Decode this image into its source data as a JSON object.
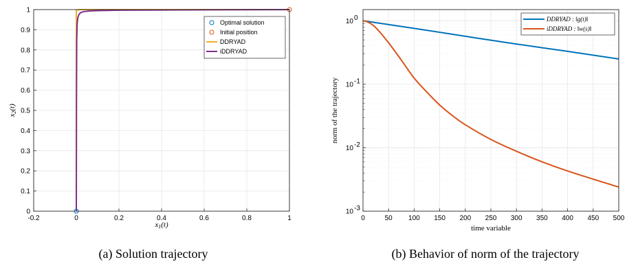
{
  "captions": {
    "a": "(a) Solution trajectory",
    "b": "(b) Behavior of norm of the trajectory"
  },
  "colors": {
    "blue": "#0072BD",
    "orange": "#D95319",
    "yellow": "#EDB120",
    "purple": "#7E2F8E"
  },
  "chart_data": [
    {
      "type": "line",
      "xlabel": "x_1(t)",
      "ylabel": "x_2(t)",
      "xlim": [
        -0.2,
        1
      ],
      "ylim": [
        0,
        1
      ],
      "xticks": [
        "-0.2",
        "0",
        "0.2",
        "0.4",
        "0.6",
        "0.8",
        "1"
      ],
      "yticks": [
        "0",
        "0.1",
        "0.2",
        "0.3",
        "0.4",
        "0.5",
        "0.6",
        "0.7",
        "0.8",
        "0.9",
        "1"
      ],
      "grid": true,
      "legend_position": "top-right",
      "series": [
        {
          "name": "Optimal solution",
          "marker": "circle",
          "color": "#0072BD",
          "x": [
            0
          ],
          "y": [
            0
          ]
        },
        {
          "name": "Initial position",
          "marker": "circle",
          "color": "#D95319",
          "x": [
            1
          ],
          "y": [
            1
          ]
        },
        {
          "name": "DDRYAD",
          "color": "#EDB120",
          "x": [
            0,
            0,
            0.01,
            0.03,
            0.1,
            0.3,
            0.6,
            1.0
          ],
          "y": [
            0,
            0.995,
            1.0,
            1.0,
            1.0,
            1.0,
            1.0,
            1.0
          ]
        },
        {
          "name": "iDDRYAD",
          "color": "#7E2F8E",
          "x": [
            0,
            0.001,
            0.002,
            0.004,
            0.007,
            0.012,
            0.02,
            0.035,
            0.06,
            0.1,
            0.2,
            0.4,
            0.7,
            1.0
          ],
          "y": [
            0,
            0.6,
            0.85,
            0.93,
            0.96,
            0.975,
            0.985,
            0.99,
            0.993,
            0.995,
            0.997,
            0.998,
            0.999,
            1.0
          ]
        }
      ]
    },
    {
      "type": "line",
      "yscale": "log",
      "xlabel": "time variable",
      "ylabel": "norm of the trajectory",
      "xlim": [
        0,
        500
      ],
      "ylim": [
        0.001,
        1.5
      ],
      "xticks": [
        "0",
        "50",
        "100",
        "150",
        "200",
        "250",
        "300",
        "350",
        "400",
        "450",
        "500"
      ],
      "yticks": [
        {
          "base": "10",
          "exp": "0",
          "value": 1
        },
        {
          "base": "10",
          "exp": "-1",
          "value": 0.1
        },
        {
          "base": "10",
          "exp": "-2",
          "value": 0.01
        },
        {
          "base": "10",
          "exp": "-3",
          "value": 0.001
        }
      ],
      "grid": true,
      "legend_position": "top-right",
      "series": [
        {
          "name": "DDRYAD : ‖g(t)‖",
          "color": "#0072BD",
          "x": [
            0,
            100,
            200,
            300,
            400,
            500
          ],
          "y": [
            1.0,
            0.76,
            0.57,
            0.43,
            0.33,
            0.25
          ]
        },
        {
          "name": "iDDRYAD : ‖w(s)‖",
          "color": "#D95319",
          "x": [
            0,
            10,
            25,
            50,
            75,
            100,
            125,
            150,
            175,
            200,
            250,
            300,
            350,
            400,
            450,
            500
          ],
          "y": [
            1.0,
            0.95,
            0.78,
            0.45,
            0.24,
            0.125,
            0.075,
            0.047,
            0.032,
            0.023,
            0.0135,
            0.0088,
            0.006,
            0.0043,
            0.0032,
            0.0024
          ]
        }
      ]
    }
  ]
}
